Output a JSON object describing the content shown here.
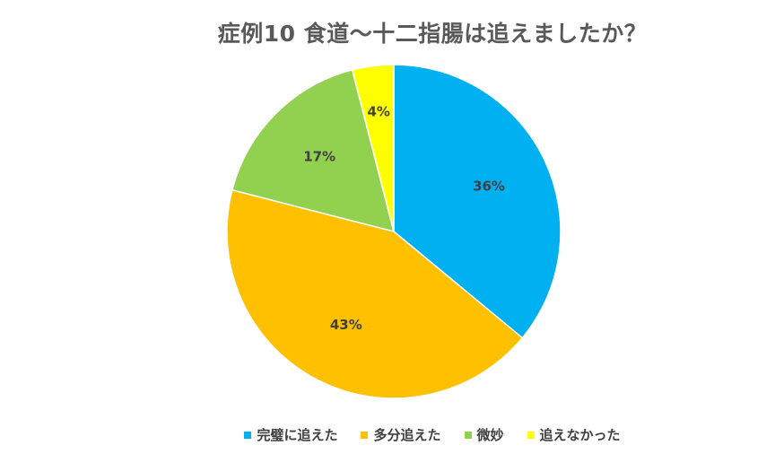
{
  "chart_data": {
    "type": "pie",
    "title": "症例10  食道〜十二指腸は追えましたか？",
    "categories": [
      "完璧に追えた",
      "多分追えた",
      "微妙",
      "追えなかった"
    ],
    "values": [
      36,
      43,
      17,
      4
    ],
    "value_labels": [
      "36%",
      "43%",
      "17%",
      "4%"
    ],
    "colors": [
      "#00B0F0",
      "#FFC000",
      "#92D050",
      "#FFFF00"
    ],
    "legend_position": "bottom",
    "start_angle": "12 o'clock",
    "direction": "clockwise"
  }
}
